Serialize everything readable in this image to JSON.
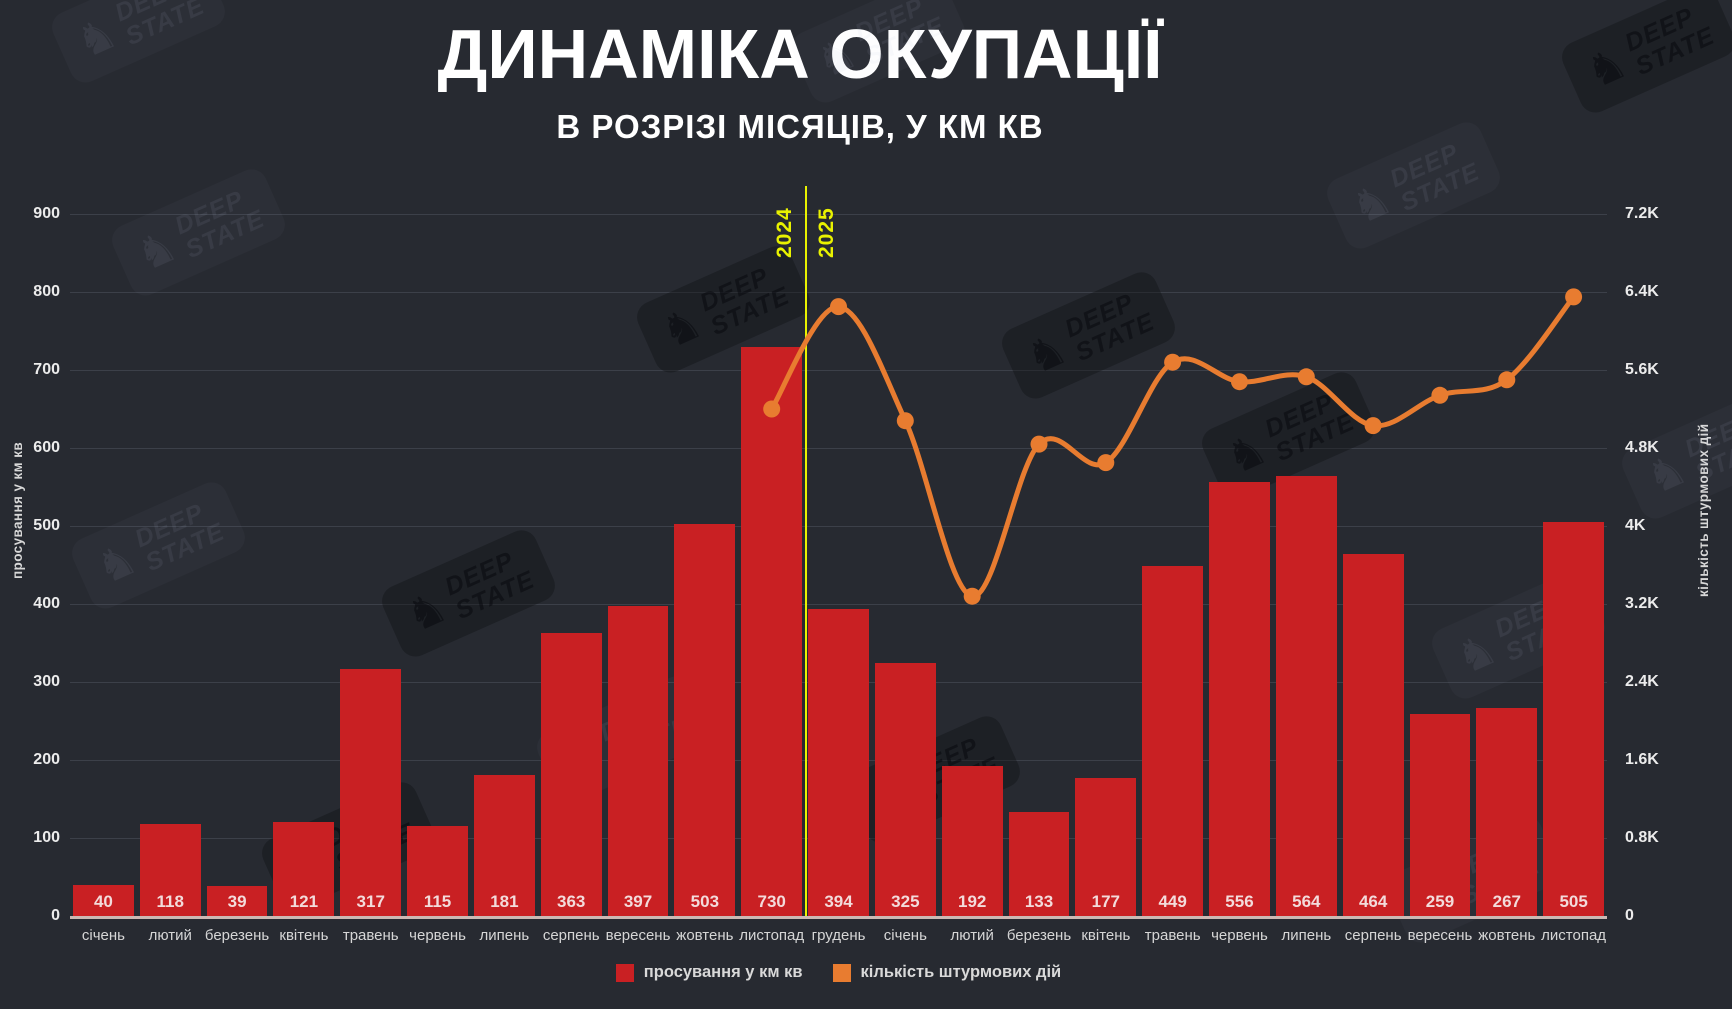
{
  "header": {
    "title": "ДИНАМІКА ОКУПАЦІЇ",
    "subtitle": "В РОЗРІЗІ МІСЯЦІВ, У КМ КВ"
  },
  "watermark": {
    "line1": "DEEP",
    "line2": "STATE"
  },
  "icons": {
    "knight": "♞"
  },
  "legend": [
    {
      "label": "просування у км кв",
      "color": "#c92023"
    },
    {
      "label": "кількість штурмових дій",
      "color": "#e87c30"
    }
  ],
  "colors": {
    "background": "#272a31",
    "bar": "#c92023",
    "line": "#e87c30",
    "divider": "#e9f200",
    "grid": "#3c4049",
    "baseline": "#ccb9b4"
  },
  "chart_data": {
    "type": "bar",
    "categories": [
      "січень",
      "лютий",
      "березень",
      "квітень",
      "травень",
      "червень",
      "липень",
      "серпень",
      "вересень",
      "жовтень",
      "листопад",
      "грудень",
      "січень",
      "лютий",
      "березень",
      "квітень",
      "травень",
      "червень",
      "липень",
      "серпень",
      "вересень",
      "жовтень",
      "листопад"
    ],
    "series": [
      {
        "name": "просування у км кв",
        "type": "bar",
        "axis": "left",
        "color": "#c92023",
        "values": [
          40,
          118,
          39,
          121,
          317,
          115,
          181,
          363,
          397,
          503,
          730,
          394,
          325,
          192,
          133,
          177,
          449,
          556,
          564,
          464,
          259,
          267,
          505
        ]
      },
      {
        "name": "кількість штурмових дій",
        "type": "line",
        "axis": "right",
        "color": "#e87c30",
        "start_index": 10,
        "values": [
          5200,
          6250,
          5080,
          3280,
          4840,
          4650,
          5680,
          5480,
          5530,
          5030,
          5340,
          5500,
          6350
        ]
      }
    ],
    "left_axis": {
      "label": "просування у км кв",
      "min": 0,
      "max": 900,
      "ticks": [
        "900",
        "800",
        "700",
        "600",
        "500",
        "400",
        "300",
        "200",
        "100",
        "0"
      ]
    },
    "right_axis": {
      "label": "кількість штурмових дій",
      "min": 0,
      "max": 7200,
      "ticks": [
        "7.2K",
        "6.4K",
        "5.6K",
        "4.8K",
        "4K",
        "3.2K",
        "2.4K",
        "1.6K",
        "0.8K",
        "0"
      ]
    },
    "year_divider": {
      "after_category_index": 10,
      "labels": [
        "2024",
        "2025"
      ]
    },
    "grid": true,
    "legend_position": "bottom"
  }
}
